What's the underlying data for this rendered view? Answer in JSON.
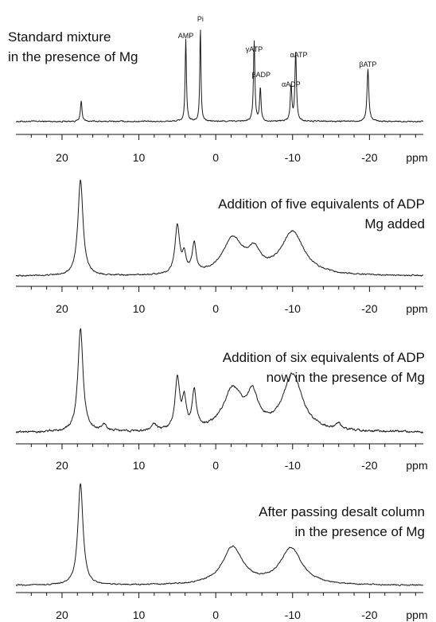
{
  "chart_data": [
    {
      "type": "line",
      "title_lines": [
        "Standard mixture",
        "in the presence of Mg"
      ],
      "title_align": "left",
      "xlabel": "ppm",
      "xlim": [
        26,
        -27
      ],
      "x_direction": "reversed",
      "xticks": [
        20,
        10,
        0,
        -10,
        -20
      ],
      "tick_labels": [
        "20",
        "10",
        "0",
        "-10",
        "-20"
      ],
      "ylim": [
        0,
        1
      ],
      "peak_labels": [
        {
          "text": "AMP",
          "x": 3.9
        },
        {
          "text": "Pi",
          "x": 2.0
        },
        {
          "text": "γATP",
          "x": -5.0
        },
        {
          "text": "βADP",
          "x": -5.9
        },
        {
          "text": "αADP",
          "x": -9.8
        },
        {
          "text": "αATP",
          "x": -10.8
        },
        {
          "text": "βATP",
          "x": -19.8
        }
      ],
      "series": [
        {
          "baseline": 0.02,
          "noise": 0.012,
          "peaks": [
            {
              "x": 17.5,
              "h": 0.22,
              "w": 0.12
            },
            {
              "x": 3.9,
              "h": 0.87,
              "w": 0.1
            },
            {
              "x": 2.0,
              "h": 1.0,
              "w": 0.09
            },
            {
              "x": -5.0,
              "h": 0.85,
              "w": 0.11
            },
            {
              "x": -5.8,
              "h": 0.36,
              "w": 0.11
            },
            {
              "x": -9.8,
              "h": 0.38,
              "w": 0.12
            },
            {
              "x": -10.4,
              "h": 0.73,
              "w": 0.12
            },
            {
              "x": -19.8,
              "h": 0.56,
              "w": 0.14
            }
          ]
        }
      ]
    },
    {
      "type": "line",
      "title_lines": [
        "Addition of five equivalents of ADP",
        "Mg added"
      ],
      "title_align": "right",
      "xlabel": "ppm",
      "xlim": [
        26,
        -27
      ],
      "x_direction": "reversed",
      "xticks": [
        20,
        10,
        0,
        -10,
        -20
      ],
      "tick_labels": [
        "20",
        "10",
        "0",
        "-10",
        "-20"
      ],
      "ylim": [
        0,
        1
      ],
      "series": [
        {
          "baseline": 0.04,
          "noise": 0.012,
          "peaks": [
            {
              "x": 17.6,
              "h": 1.0,
              "w": 0.4
            },
            {
              "x": 5.0,
              "h": 0.5,
              "w": 0.35
            },
            {
              "x": 4.1,
              "h": 0.18,
              "w": 0.3
            },
            {
              "x": 2.8,
              "h": 0.3,
              "w": 0.3
            },
            {
              "x": -2.2,
              "h": 0.37,
              "w": 1.6
            },
            {
              "x": -5.0,
              "h": 0.2,
              "w": 1.0
            },
            {
              "x": -10.0,
              "h": 0.45,
              "w": 1.8
            }
          ]
        }
      ]
    },
    {
      "type": "line",
      "title_lines": [
        "Addition of six equivalents of ADP",
        "now in the presence of Mg"
      ],
      "title_align": "right",
      "xlabel": "ppm",
      "xlim": [
        26,
        -27
      ],
      "x_direction": "reversed",
      "xticks": [
        20,
        10,
        0,
        -10,
        -20
      ],
      "tick_labels": [
        "20",
        "10",
        "0",
        "-10",
        "-20"
      ],
      "ylim": [
        0,
        1
      ],
      "series": [
        {
          "baseline": 0.05,
          "noise": 0.018,
          "peaks": [
            {
              "x": 17.6,
              "h": 1.0,
              "w": 0.4
            },
            {
              "x": 14.5,
              "h": 0.06,
              "w": 0.4
            },
            {
              "x": 8.0,
              "h": 0.06,
              "w": 0.4
            },
            {
              "x": 5.0,
              "h": 0.5,
              "w": 0.35
            },
            {
              "x": 4.1,
              "h": 0.28,
              "w": 0.3
            },
            {
              "x": 2.8,
              "h": 0.37,
              "w": 0.3
            },
            {
              "x": -2.2,
              "h": 0.39,
              "w": 1.5
            },
            {
              "x": -4.8,
              "h": 0.3,
              "w": 0.9
            },
            {
              "x": -10.0,
              "h": 0.55,
              "w": 1.5
            },
            {
              "x": -16.0,
              "h": 0.06,
              "w": 0.3
            }
          ]
        }
      ]
    },
    {
      "type": "line",
      "title_lines": [
        "After passing desalt column",
        "in the presence of Mg"
      ],
      "title_align": "right",
      "xlabel": "ppm",
      "xlim": [
        26,
        -27
      ],
      "x_direction": "reversed",
      "xticks": [
        20,
        10,
        0,
        -10,
        -20
      ],
      "tick_labels": [
        "20",
        "10",
        "0",
        "-10",
        "-20"
      ],
      "ylim": [
        0,
        1
      ],
      "series": [
        {
          "baseline": 0.03,
          "noise": 0.01,
          "peaks": [
            {
              "x": 17.6,
              "h": 1.0,
              "w": 0.4
            },
            {
              "x": -2.2,
              "h": 0.37,
              "w": 1.6
            },
            {
              "x": -9.8,
              "h": 0.36,
              "w": 1.7
            }
          ]
        }
      ]
    }
  ]
}
